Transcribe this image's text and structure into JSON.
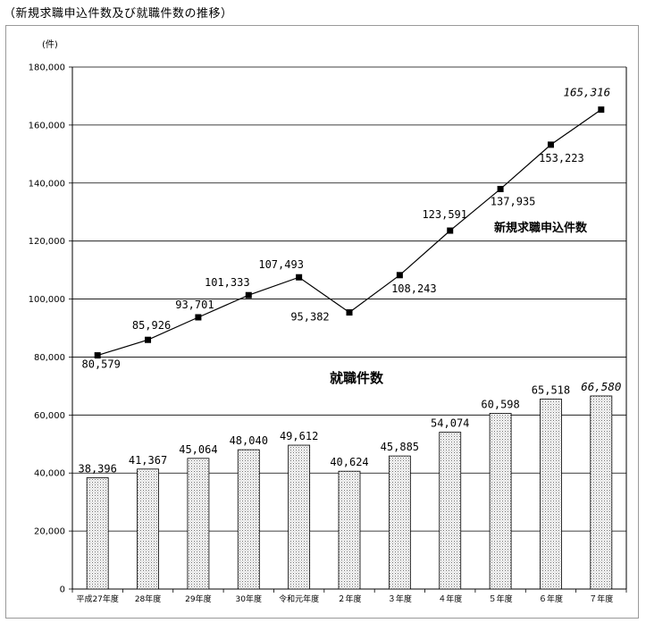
{
  "title": "（新規求職申込件数及び就職件数の推移）",
  "chart_data": {
    "type": "bar+line",
    "ylabel": "(件)",
    "ylim": [
      0,
      180000
    ],
    "yticks": [
      0,
      20000,
      40000,
      60000,
      80000,
      100000,
      120000,
      140000,
      160000,
      180000
    ],
    "ytick_labels": [
      "0",
      "20,000",
      "40,000",
      "60,000",
      "80,000",
      "100,000",
      "120,000",
      "140,000",
      "160,000",
      "180,000"
    ],
    "grid": true,
    "categories": [
      "平成27年度",
      "28年度",
      "29年度",
      "30年度",
      "令和元年度",
      "２年度",
      "３年度",
      "４年度",
      "５年度",
      "６年度",
      "７年度"
    ],
    "series": [
      {
        "name": "就職件数",
        "type": "bar",
        "values": [
          38396,
          41367,
          45064,
          48040,
          49612,
          40624,
          45885,
          54074,
          60598,
          65518,
          66580
        ],
        "labels": [
          "38,396",
          "41,367",
          "45,064",
          "48,040",
          "49,612",
          "40,624",
          "45,885",
          "54,074",
          "60,598",
          "65,518",
          "66,580"
        ]
      },
      {
        "name": "新規求職申込件数",
        "type": "line",
        "values": [
          80579,
          85926,
          93701,
          101333,
          107493,
          95382,
          108243,
          123591,
          137935,
          153223,
          165316
        ],
        "labels": [
          "80,579",
          "85,926",
          "93,701",
          "101,333",
          "107,493",
          "95,382",
          "108,243",
          "123,591",
          "137,935",
          "153,223",
          "165,316"
        ]
      }
    ]
  }
}
